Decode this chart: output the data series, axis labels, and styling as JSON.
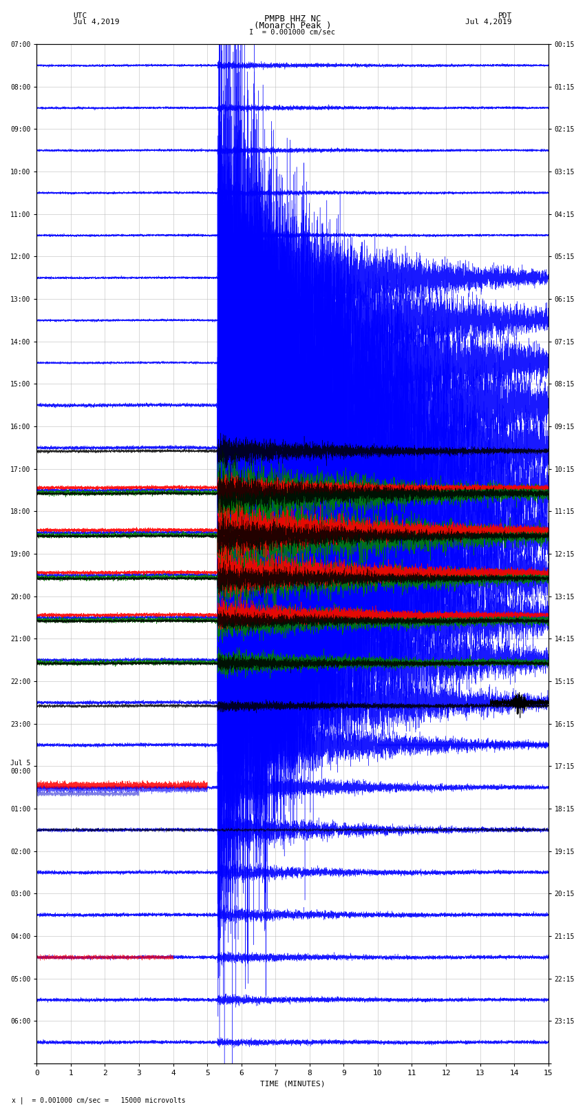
{
  "title_line1": "PMPB HHZ NC",
  "title_line2": "(Monarch Peak )",
  "scale_label": "I  = 0.001000 cm/sec",
  "xlabel": "TIME (MINUTES)",
  "footnote": "x |  = 0.001000 cm/sec =   15000 microvolts",
  "xlim": [
    0,
    15
  ],
  "xticks": [
    0,
    1,
    2,
    3,
    4,
    5,
    6,
    7,
    8,
    9,
    10,
    11,
    12,
    13,
    14,
    15
  ],
  "left_yticks_labels": [
    "07:00",
    "08:00",
    "09:00",
    "10:00",
    "11:00",
    "12:00",
    "13:00",
    "14:00",
    "15:00",
    "16:00",
    "17:00",
    "18:00",
    "19:00",
    "20:00",
    "21:00",
    "22:00",
    "23:00",
    "Jul 5\n00:00",
    "01:00",
    "02:00",
    "03:00",
    "04:00",
    "05:00",
    "06:00",
    ""
  ],
  "right_yticks_labels": [
    "00:15",
    "01:15",
    "02:15",
    "03:15",
    "04:15",
    "05:15",
    "06:15",
    "07:15",
    "08:15",
    "09:15",
    "10:15",
    "11:15",
    "12:15",
    "13:15",
    "14:15",
    "15:15",
    "16:15",
    "17:15",
    "18:15",
    "19:15",
    "20:15",
    "21:15",
    "22:15",
    "23:15",
    ""
  ],
  "bg_color": "#ffffff",
  "grid_color": "#bbbbbb",
  "num_rows": 24,
  "fig_width": 8.5,
  "fig_height": 16.13,
  "dpi": 100
}
